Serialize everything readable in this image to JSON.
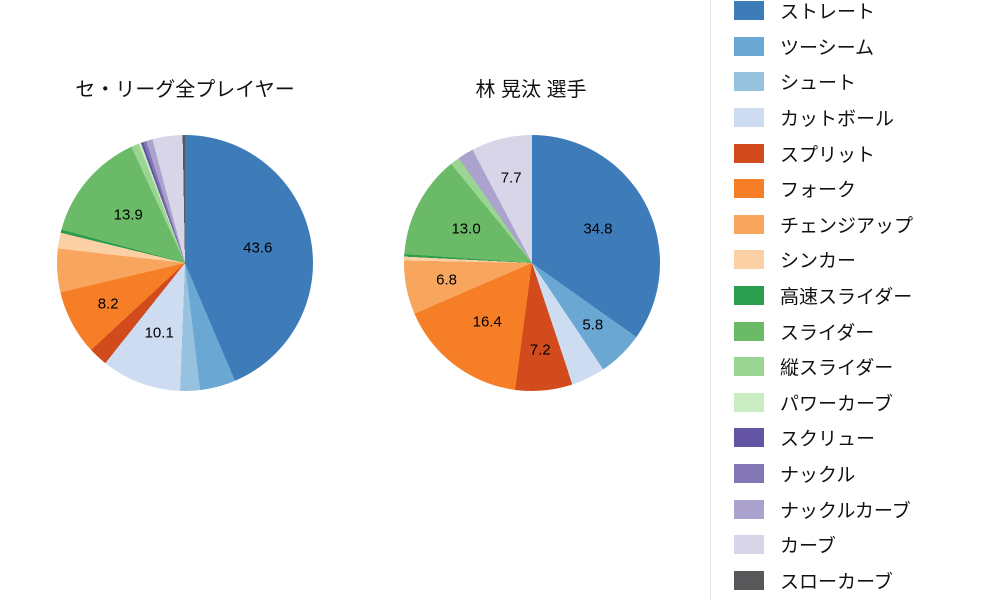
{
  "page": {
    "background": "#ffffff",
    "text_color": "#111111"
  },
  "chart_data": [
    {
      "type": "pie",
      "title": "セ・リーグ全プレイヤー",
      "labels": [
        "ストレート",
        "ツーシーム",
        "シュート",
        "カットボール",
        "スプリット",
        "フォーク",
        "チェンジアップ",
        "シンカー",
        "高速スライダー",
        "スライダー",
        "縦スライダー",
        "パワーカーブ",
        "スクリュー",
        "ナックル",
        "ナックルカーブ",
        "カーブ",
        "スローカーブ"
      ],
      "values": [
        43.6,
        4.5,
        2.5,
        10.1,
        2.4,
        8.2,
        5.5,
        2.0,
        0.4,
        13.9,
        1.0,
        0.3,
        0.3,
        0.4,
        0.8,
        3.8,
        0.3
      ],
      "value_labels": [
        {
          "index": 0,
          "text": "43.6"
        },
        {
          "index": 3,
          "text": "10.1"
        },
        {
          "index": 5,
          "text": "8.2"
        },
        {
          "index": 9,
          "text": "13.9"
        }
      ],
      "start_angle_deg": 0,
      "direction": "clockwise"
    },
    {
      "type": "pie",
      "title": "林 晃汰 選手",
      "labels": [
        "ストレート",
        "ツーシーム",
        "シュート",
        "カットボール",
        "スプリット",
        "フォーク",
        "チェンジアップ",
        "シンカー",
        "高速スライダー",
        "スライダー",
        "縦スライダー",
        "パワーカーブ",
        "スクリュー",
        "ナックル",
        "ナックルカーブ",
        "カーブ",
        "スローカーブ"
      ],
      "values": [
        34.8,
        5.8,
        0,
        4.3,
        7.2,
        16.4,
        6.8,
        0.5,
        0.3,
        13.0,
        1.2,
        0,
        0,
        0,
        2.0,
        7.7,
        0
      ],
      "value_labels": [
        {
          "index": 0,
          "text": "34.8"
        },
        {
          "index": 1,
          "text": "5.8"
        },
        {
          "index": 4,
          "text": "7.2"
        },
        {
          "index": 5,
          "text": "16.4"
        },
        {
          "index": 6,
          "text": "6.8"
        },
        {
          "index": 9,
          "text": "13.0"
        },
        {
          "index": 15,
          "text": "7.7"
        }
      ],
      "start_angle_deg": 0,
      "direction": "clockwise"
    }
  ],
  "legend": {
    "position": "right",
    "items": [
      {
        "label": "ストレート",
        "color": "#3d7cb9"
      },
      {
        "label": "ツーシーム",
        "color": "#6aa7d3"
      },
      {
        "label": "シュート",
        "color": "#97c2df"
      },
      {
        "label": "カットボール",
        "color": "#cddcf0"
      },
      {
        "label": "スプリット",
        "color": "#d24b1d"
      },
      {
        "label": "フォーク",
        "color": "#f57e27"
      },
      {
        "label": "チェンジアップ",
        "color": "#f8a55e"
      },
      {
        "label": "シンカー",
        "color": "#fbd0a4"
      },
      {
        "label": "高速スライダー",
        "color": "#2a9d4e"
      },
      {
        "label": "スライダー",
        "color": "#6aba68"
      },
      {
        "label": "縦スライダー",
        "color": "#9bd593"
      },
      {
        "label": "パワーカーブ",
        "color": "#c9ecc2"
      },
      {
        "label": "スクリュー",
        "color": "#6355a4"
      },
      {
        "label": "ナックル",
        "color": "#8277b4"
      },
      {
        "label": "ナックルカーブ",
        "color": "#aba2cd"
      },
      {
        "label": "カーブ",
        "color": "#d8d5e9"
      },
      {
        "label": "スローカーブ",
        "color": "#58585b"
      }
    ]
  }
}
